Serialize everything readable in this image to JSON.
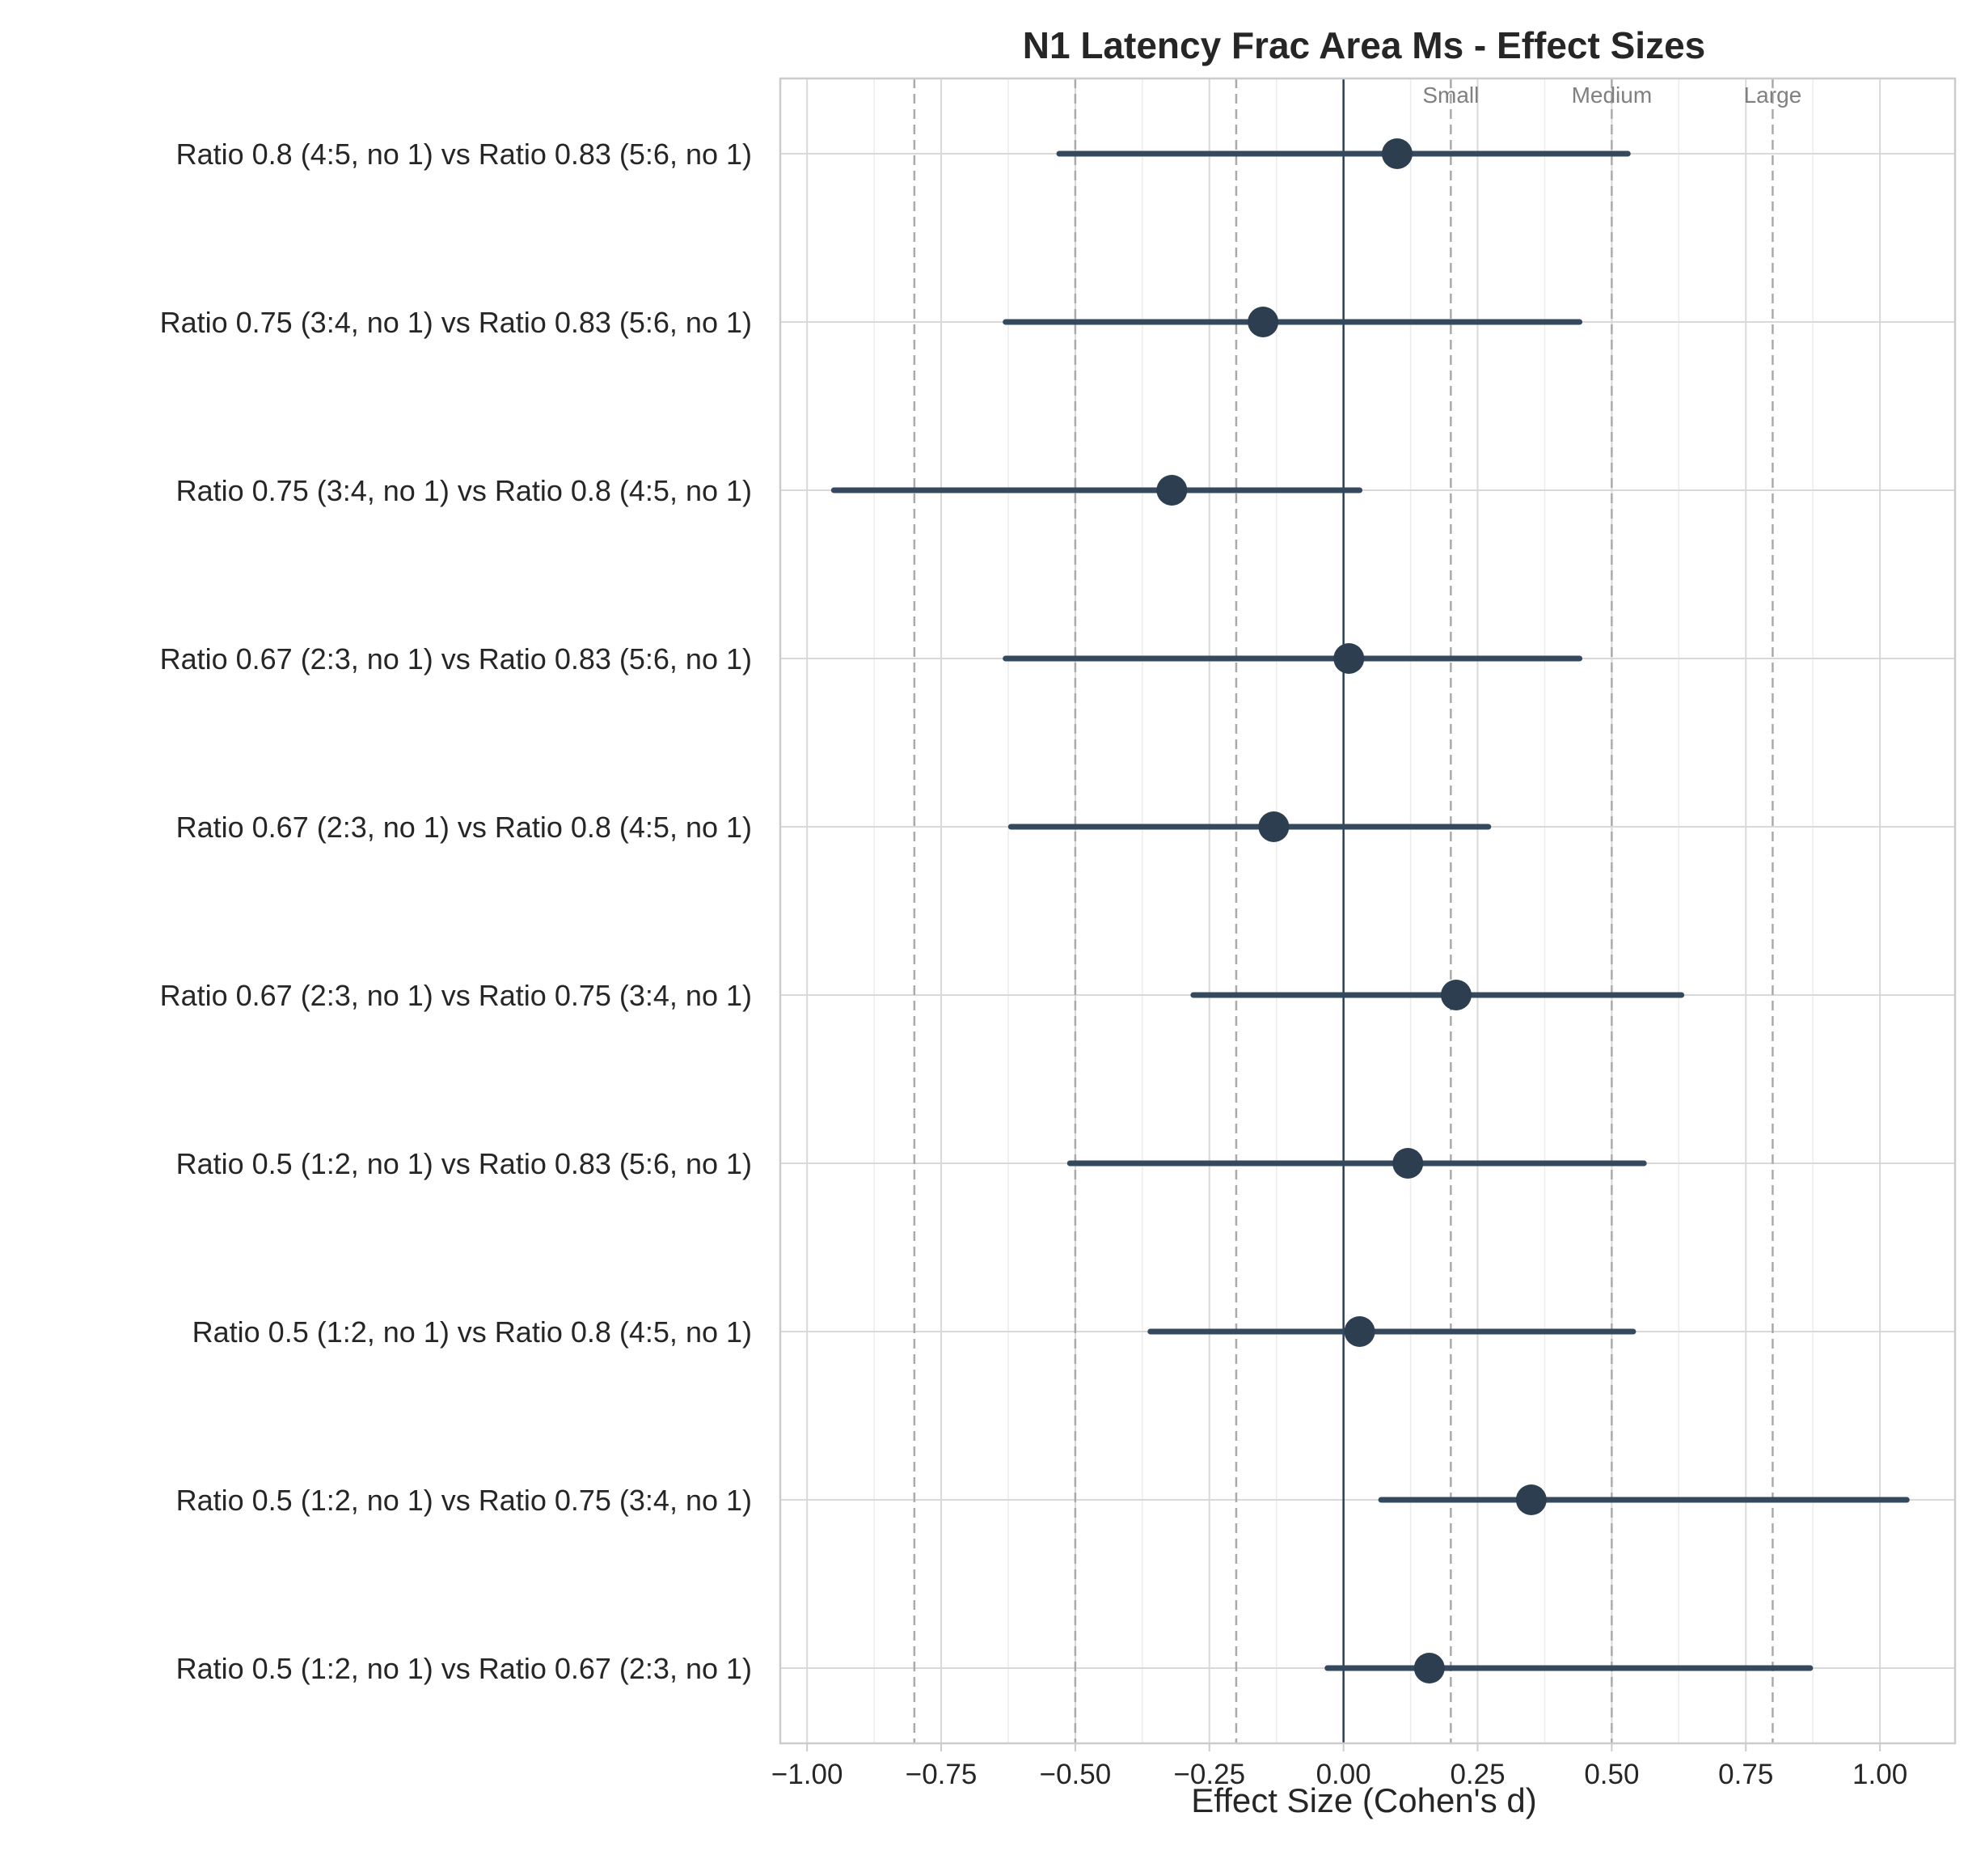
{
  "chart_data": {
    "type": "forest",
    "title": "N1 Latency Frac Area Ms - Effect Sizes",
    "xlabel": "Effect Size (Cohen's d)",
    "ylabel": "",
    "xlim": [
      -1.05,
      1.14
    ],
    "xticks": [
      -1.0,
      -0.75,
      -0.5,
      -0.25,
      0.0,
      0.25,
      0.5,
      0.75,
      1.0
    ],
    "xtick_labels": [
      "−1.00",
      "−0.75",
      "−0.50",
      "−0.25",
      "0.00",
      "0.25",
      "0.50",
      "0.75",
      "1.00"
    ],
    "grid": true,
    "reference_line": 0.0,
    "thresholds": [
      {
        "label": "Small",
        "value": 0.2
      },
      {
        "label": "Medium",
        "value": 0.5
      },
      {
        "label": "Large",
        "value": 0.8
      }
    ],
    "comparisons": [
      {
        "label": "Ratio 0.8 (4:5, no 1) vs Ratio 0.83 (5:6, no 1)",
        "d": 0.1,
        "ci_low": -0.53,
        "ci_high": 0.53
      },
      {
        "label": "Ratio 0.75 (3:4, no 1) vs Ratio 0.83 (5:6, no 1)",
        "d": -0.15,
        "ci_low": -0.63,
        "ci_high": 0.44
      },
      {
        "label": "Ratio 0.75 (3:4, no 1) vs Ratio 0.8 (4:5, no 1)",
        "d": -0.32,
        "ci_low": -0.95,
        "ci_high": 0.03
      },
      {
        "label": "Ratio 0.67 (2:3, no 1) vs Ratio 0.83 (5:6, no 1)",
        "d": 0.01,
        "ci_low": -0.63,
        "ci_high": 0.44
      },
      {
        "label": "Ratio 0.67 (2:3, no 1) vs Ratio 0.8 (4:5, no 1)",
        "d": -0.13,
        "ci_low": -0.62,
        "ci_high": 0.27
      },
      {
        "label": "Ratio 0.67 (2:3, no 1) vs Ratio 0.75 (3:4, no 1)",
        "d": 0.21,
        "ci_low": -0.28,
        "ci_high": 0.63
      },
      {
        "label": "Ratio 0.5 (1:2, no 1) vs Ratio 0.83 (5:6, no 1)",
        "d": 0.12,
        "ci_low": -0.51,
        "ci_high": 0.56
      },
      {
        "label": "Ratio 0.5 (1:2, no 1) vs Ratio 0.8 (4:5, no 1)",
        "d": 0.03,
        "ci_low": -0.36,
        "ci_high": 0.54
      },
      {
        "label": "Ratio 0.5 (1:2, no 1) vs Ratio 0.75 (3:4, no 1)",
        "d": 0.35,
        "ci_low": 0.07,
        "ci_high": 1.05
      },
      {
        "label": "Ratio 0.5 (1:2, no 1) vs Ratio 0.67 (2:3, no 1)",
        "d": 0.16,
        "ci_low": -0.03,
        "ci_high": 0.87
      }
    ],
    "colors": {
      "marker": "#2c3e50",
      "ci_line": "#34495e",
      "zero_line": "#2c3e50",
      "threshold_line": "#aaaaaa",
      "threshold_text": "#808080",
      "grid": "#d9d9d9",
      "text": "#262626",
      "title": "#262626",
      "frame": "#cccccc"
    }
  }
}
